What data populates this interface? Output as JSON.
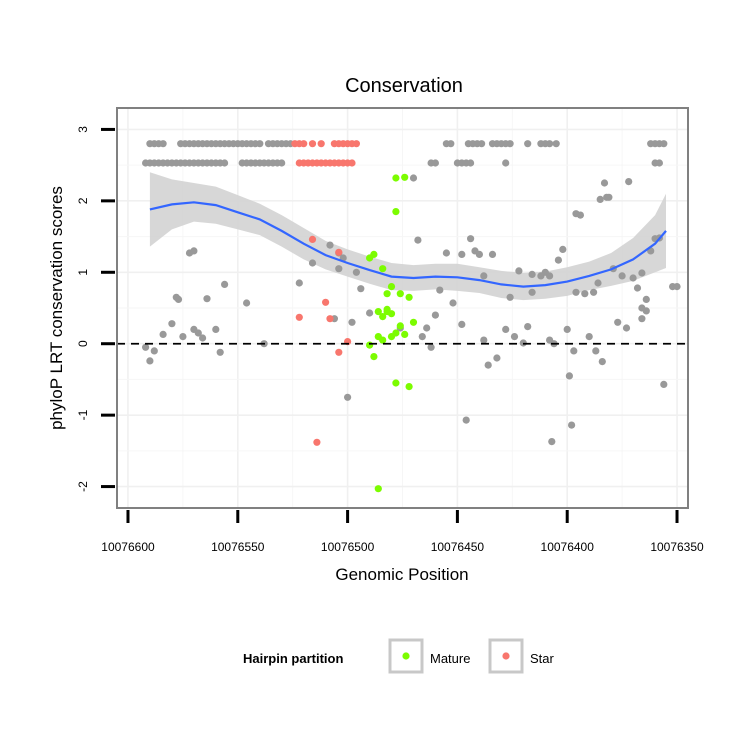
{
  "chart_data": {
    "type": "scatter",
    "title": "Conservation",
    "xlabel": "Genomic Position",
    "ylabel": "phyloP LRT conservation scores",
    "xlim": [
      10076605,
      10076345
    ],
    "x_reversed": true,
    "ylim": [
      -2.3,
      3.3
    ],
    "x_ticks": [
      10076600,
      10076550,
      10076500,
      10076450,
      10076400,
      10076350
    ],
    "x_tick_labels": [
      "10076600",
      "10076550",
      "10076500",
      "10076450",
      "10076400",
      "10076350"
    ],
    "y_ticks": [
      -2,
      -1,
      0,
      1,
      2,
      3
    ],
    "y_tick_labels": [
      "-2",
      "-1",
      "0",
      "1",
      "2",
      "3"
    ],
    "grid": true,
    "reference_line": {
      "y": 0,
      "style": "dashed",
      "color": "#000000"
    },
    "colors": {
      "other": "#999999",
      "Mature": "#7CFC00",
      "Star": "#F8766D",
      "smooth": "#3366FF",
      "band": "#D3D3D3"
    },
    "legend": {
      "title": "Hairpin partition",
      "position": "bottom",
      "entries": [
        {
          "label": "Mature",
          "color": "#7CFC00"
        },
        {
          "label": "Star",
          "color": "#F8766D"
        }
      ]
    },
    "smooth": {
      "x": [
        10076590,
        10076580,
        10076570,
        10076560,
        10076550,
        10076540,
        10076530,
        10076520,
        10076510,
        10076500,
        10076490,
        10076480,
        10076470,
        10076460,
        10076450,
        10076440,
        10076430,
        10076420,
        10076410,
        10076400,
        10076390,
        10076380,
        10076370,
        10076360,
        10076355
      ],
      "y": [
        1.88,
        1.95,
        1.98,
        1.94,
        1.84,
        1.74,
        1.58,
        1.4,
        1.24,
        1.13,
        1.03,
        0.94,
        0.92,
        0.94,
        0.93,
        0.89,
        0.83,
        0.8,
        0.82,
        0.87,
        0.95,
        1.04,
        1.18,
        1.4,
        1.58
      ],
      "upper": [
        2.4,
        2.3,
        2.25,
        2.2,
        2.08,
        1.96,
        1.8,
        1.62,
        1.44,
        1.32,
        1.22,
        1.13,
        1.1,
        1.12,
        1.12,
        1.07,
        1.02,
        0.99,
        1.01,
        1.07,
        1.15,
        1.27,
        1.48,
        1.8,
        2.1
      ],
      "lower": [
        1.36,
        1.6,
        1.71,
        1.68,
        1.6,
        1.52,
        1.36,
        1.18,
        1.04,
        0.94,
        0.84,
        0.75,
        0.74,
        0.76,
        0.74,
        0.71,
        0.64,
        0.61,
        0.63,
        0.67,
        0.75,
        0.81,
        0.88,
        1.0,
        1.06
      ]
    },
    "series": [
      {
        "name": "Other",
        "points": [
          [
            10076590,
            2.8
          ],
          [
            10076588,
            2.8
          ],
          [
            10076586,
            2.8
          ],
          [
            10076584,
            2.8
          ],
          [
            10076576,
            2.8
          ],
          [
            10076574,
            2.8
          ],
          [
            10076572,
            2.8
          ],
          [
            10076570,
            2.8
          ],
          [
            10076568,
            2.8
          ],
          [
            10076566,
            2.8
          ],
          [
            10076564,
            2.8
          ],
          [
            10076562,
            2.8
          ],
          [
            10076560,
            2.8
          ],
          [
            10076558,
            2.8
          ],
          [
            10076556,
            2.8
          ],
          [
            10076554,
            2.8
          ],
          [
            10076552,
            2.8
          ],
          [
            10076550,
            2.8
          ],
          [
            10076548,
            2.8
          ],
          [
            10076546,
            2.8
          ],
          [
            10076544,
            2.8
          ],
          [
            10076542,
            2.8
          ],
          [
            10076540,
            2.8
          ],
          [
            10076536,
            2.8
          ],
          [
            10076534,
            2.8
          ],
          [
            10076532,
            2.8
          ],
          [
            10076530,
            2.8
          ],
          [
            10076528,
            2.8
          ],
          [
            10076526,
            2.8
          ],
          [
            10076455,
            2.8
          ],
          [
            10076453,
            2.8
          ],
          [
            10076445,
            2.8
          ],
          [
            10076443,
            2.8
          ],
          [
            10076441,
            2.8
          ],
          [
            10076439,
            2.8
          ],
          [
            10076434,
            2.8
          ],
          [
            10076432,
            2.8
          ],
          [
            10076430,
            2.8
          ],
          [
            10076428,
            2.8
          ],
          [
            10076426,
            2.8
          ],
          [
            10076418,
            2.8
          ],
          [
            10076412,
            2.8
          ],
          [
            10076410,
            2.8
          ],
          [
            10076408,
            2.8
          ],
          [
            10076405,
            2.8
          ],
          [
            10076362,
            2.8
          ],
          [
            10076360,
            2.8
          ],
          [
            10076358,
            2.8
          ],
          [
            10076356,
            2.8
          ],
          [
            10076592,
            2.53
          ],
          [
            10076590,
            2.53
          ],
          [
            10076588,
            2.53
          ],
          [
            10076586,
            2.53
          ],
          [
            10076584,
            2.53
          ],
          [
            10076582,
            2.53
          ],
          [
            10076580,
            2.53
          ],
          [
            10076578,
            2.53
          ],
          [
            10076576,
            2.53
          ],
          [
            10076574,
            2.53
          ],
          [
            10076572,
            2.53
          ],
          [
            10076570,
            2.53
          ],
          [
            10076568,
            2.53
          ],
          [
            10076566,
            2.53
          ],
          [
            10076564,
            2.53
          ],
          [
            10076562,
            2.53
          ],
          [
            10076560,
            2.53
          ],
          [
            10076558,
            2.53
          ],
          [
            10076556,
            2.53
          ],
          [
            10076548,
            2.53
          ],
          [
            10076546,
            2.53
          ],
          [
            10076544,
            2.53
          ],
          [
            10076542,
            2.53
          ],
          [
            10076540,
            2.53
          ],
          [
            10076538,
            2.53
          ],
          [
            10076536,
            2.53
          ],
          [
            10076534,
            2.53
          ],
          [
            10076532,
            2.53
          ],
          [
            10076530,
            2.53
          ],
          [
            10076462,
            2.53
          ],
          [
            10076460,
            2.53
          ],
          [
            10076450,
            2.53
          ],
          [
            10076448,
            2.53
          ],
          [
            10076446,
            2.53
          ],
          [
            10076444,
            2.53
          ],
          [
            10076428,
            2.53
          ],
          [
            10076360,
            2.53
          ],
          [
            10076358,
            2.53
          ],
          [
            10076592,
            -0.05
          ],
          [
            10076590,
            -0.24
          ],
          [
            10076588,
            -0.1
          ],
          [
            10076584,
            0.13
          ],
          [
            10076580,
            0.28
          ],
          [
            10076578,
            0.65
          ],
          [
            10076577,
            0.62
          ],
          [
            10076575,
            0.1
          ],
          [
            10076572,
            1.27
          ],
          [
            10076570,
            1.3
          ],
          [
            10076570,
            0.2
          ],
          [
            10076568,
            0.15
          ],
          [
            10076566,
            0.08
          ],
          [
            10076564,
            0.63
          ],
          [
            10076560,
            0.2
          ],
          [
            10076558,
            -0.12
          ],
          [
            10076556,
            0.83
          ],
          [
            10076546,
            0.57
          ],
          [
            10076538,
            0.0
          ],
          [
            10076522,
            0.85
          ],
          [
            10076516,
            1.13
          ],
          [
            10076508,
            1.38
          ],
          [
            10076506,
            0.35
          ],
          [
            10076504,
            1.05
          ],
          [
            10076504,
            1.27
          ],
          [
            10076502,
            1.2
          ],
          [
            10076500,
            -0.75
          ],
          [
            10076498,
            0.3
          ],
          [
            10076496,
            1.0
          ],
          [
            10076494,
            0.77
          ],
          [
            10076490,
            0.43
          ],
          [
            10076476,
            0.22
          ],
          [
            10076470,
            2.32
          ],
          [
            10076468,
            1.45
          ],
          [
            10076466,
            0.1
          ],
          [
            10076464,
            0.22
          ],
          [
            10076462,
            -0.05
          ],
          [
            10076460,
            0.4
          ],
          [
            10076458,
            0.75
          ],
          [
            10076455,
            1.27
          ],
          [
            10076452,
            0.57
          ],
          [
            10076448,
            0.27
          ],
          [
            10076446,
            -1.07
          ],
          [
            10076444,
            1.47
          ],
          [
            10076442,
            1.3
          ],
          [
            10076440,
            1.25
          ],
          [
            10076438,
            0.05
          ],
          [
            10076436,
            -0.3
          ],
          [
            10076434,
            1.25
          ],
          [
            10076432,
            -0.2
          ],
          [
            10076428,
            0.2
          ],
          [
            10076426,
            0.65
          ],
          [
            10076424,
            0.1
          ],
          [
            10076422,
            1.02
          ],
          [
            10076420,
            0.01
          ],
          [
            10076418,
            0.24
          ],
          [
            10076416,
            0.72
          ],
          [
            10076412,
            0.95
          ],
          [
            10076410,
            1.0
          ],
          [
            10076408,
            0.05
          ],
          [
            10076407,
            -1.37
          ],
          [
            10076406,
            0.0
          ],
          [
            10076404,
            1.17
          ],
          [
            10076402,
            1.32
          ],
          [
            10076400,
            0.2
          ],
          [
            10076399,
            -0.45
          ],
          [
            10076398,
            -1.14
          ],
          [
            10076397,
            -0.1
          ],
          [
            10076396,
            1.82
          ],
          [
            10076394,
            1.8
          ],
          [
            10076392,
            0.7
          ],
          [
            10076390,
            0.1
          ],
          [
            10076388,
            0.72
          ],
          [
            10076387,
            -0.1
          ],
          [
            10076385,
            2.02
          ],
          [
            10076383,
            2.25
          ],
          [
            10076382,
            2.05
          ],
          [
            10076381,
            2.05
          ],
          [
            10076379,
            1.05
          ],
          [
            10076377,
            0.3
          ],
          [
            10076375,
            0.95
          ],
          [
            10076373,
            0.22
          ],
          [
            10076372,
            2.27
          ],
          [
            10076370,
            0.92
          ],
          [
            10076368,
            0.78
          ],
          [
            10076366,
            0.5
          ],
          [
            10076364,
            0.46
          ],
          [
            10076362,
            1.3
          ],
          [
            10076360,
            1.47
          ],
          [
            10076358,
            1.48
          ],
          [
            10076356,
            -0.57
          ],
          [
            10076352,
            0.8
          ],
          [
            10076350,
            0.8
          ],
          [
            10076448,
            1.25
          ],
          [
            10076396,
            0.72
          ],
          [
            10076386,
            0.85
          ],
          [
            10076366,
            0.99
          ],
          [
            10076364,
            0.62
          ],
          [
            10076384,
            -0.25
          ],
          [
            10076366,
            0.35
          ],
          [
            10076438,
            0.95
          ],
          [
            10076416,
            0.97
          ],
          [
            10076408,
            0.95
          ]
        ]
      },
      {
        "name": "Mature",
        "points": [
          [
            10076474,
            2.33
          ],
          [
            10076478,
            2.32
          ],
          [
            10076488,
            1.25
          ],
          [
            10076490,
            1.2
          ],
          [
            10076484,
            1.05
          ],
          [
            10076480,
            0.8
          ],
          [
            10076482,
            0.7
          ],
          [
            10076476,
            0.7
          ],
          [
            10076472,
            0.65
          ],
          [
            10076486,
            0.45
          ],
          [
            10076482,
            0.45
          ],
          [
            10076484,
            0.38
          ],
          [
            10076480,
            0.42
          ],
          [
            10076482,
            0.48
          ],
          [
            10076478,
            0.15
          ],
          [
            10076474,
            0.13
          ],
          [
            10076470,
            0.3
          ],
          [
            10076476,
            0.25
          ],
          [
            10076480,
            0.1
          ],
          [
            10076486,
            0.1
          ],
          [
            10076490,
            -0.02
          ],
          [
            10076488,
            -0.18
          ],
          [
            10076472,
            -0.6
          ],
          [
            10076478,
            -0.55
          ],
          [
            10076486,
            -2.03
          ],
          [
            10076478,
            1.85
          ],
          [
            10076484,
            0.05
          ]
        ]
      },
      {
        "name": "Star",
        "points": [
          [
            10076524,
            2.8
          ],
          [
            10076522,
            2.8
          ],
          [
            10076520,
            2.8
          ],
          [
            10076516,
            2.8
          ],
          [
            10076512,
            2.8
          ],
          [
            10076506,
            2.8
          ],
          [
            10076504,
            2.8
          ],
          [
            10076502,
            2.8
          ],
          [
            10076500,
            2.8
          ],
          [
            10076498,
            2.8
          ],
          [
            10076496,
            2.8
          ],
          [
            10076522,
            2.53
          ],
          [
            10076520,
            2.53
          ],
          [
            10076518,
            2.53
          ],
          [
            10076516,
            2.53
          ],
          [
            10076514,
            2.53
          ],
          [
            10076512,
            2.53
          ],
          [
            10076510,
            2.53
          ],
          [
            10076508,
            2.53
          ],
          [
            10076506,
            2.53
          ],
          [
            10076504,
            2.53
          ],
          [
            10076502,
            2.53
          ],
          [
            10076500,
            2.53
          ],
          [
            10076498,
            2.53
          ],
          [
            10076516,
            1.46
          ],
          [
            10076504,
            1.28
          ],
          [
            10076510,
            0.58
          ],
          [
            10076522,
            0.37
          ],
          [
            10076508,
            0.35
          ],
          [
            10076500,
            0.03
          ],
          [
            10076504,
            -0.12
          ],
          [
            10076514,
            -1.38
          ]
        ]
      }
    ]
  }
}
